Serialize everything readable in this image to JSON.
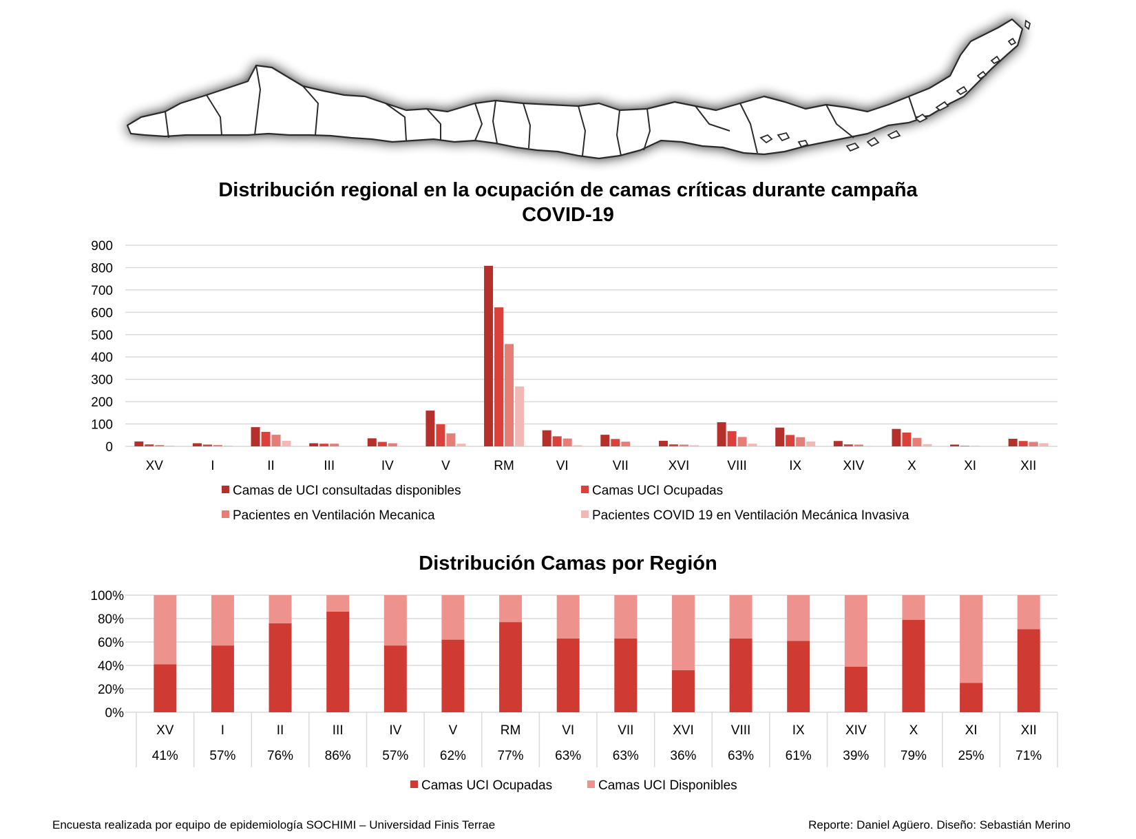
{
  "colors": {
    "uci_disponibles": "#b5302b",
    "uci_ocupadas": "#d9413a",
    "ventilacion": "#e77d77",
    "covid_vmi": "#f2b8b5",
    "stack_ocupadas": "#cf3b33",
    "stack_disponibles": "#ee928d",
    "grid": "#d9d9d9"
  },
  "chart1": {
    "title_line1": "Distribución regional en la ocupación de camas críticas durante campaña",
    "title_line2": "COVID-19"
  },
  "chart2": {
    "title": "Distribución Camas por Región"
  },
  "footer": {
    "left": "Encuesta realizada por equipo de epidemiología SOCHIMI – Universidad Finis Terrae",
    "right": "Reporte: Daniel Agüero. Diseño: Sebastián Merino"
  },
  "chart_data": [
    {
      "type": "bar",
      "title": "Distribución regional en la ocupación de camas críticas durante campaña COVID-19",
      "categories": [
        "XV",
        "I",
        "II",
        "III",
        "IV",
        "V",
        "RM",
        "VI",
        "VII",
        "XVI",
        "VIII",
        "IX",
        "XIV",
        "X",
        "XI",
        "XII"
      ],
      "ylim": [
        0,
        900
      ],
      "yticks": [
        0,
        100,
        200,
        300,
        400,
        500,
        600,
        700,
        800,
        900
      ],
      "grid": true,
      "legend": "bottom",
      "series": [
        {
          "name": "Camas de UCI consultadas disponibles",
          "color_key": "uci_disponibles",
          "values": [
            22,
            14,
            86,
            14,
            36,
            160,
            808,
            72,
            52,
            25,
            108,
            84,
            24,
            78,
            8,
            34
          ]
        },
        {
          "name": "Camas UCI Ocupadas",
          "color_key": "uci_ocupadas",
          "values": [
            9,
            8,
            65,
            12,
            20,
            99,
            622,
            45,
            33,
            9,
            68,
            51,
            9,
            62,
            2,
            24
          ]
        },
        {
          "name": "Pacientes en Ventilación Mecanica",
          "color_key": "ventilacion",
          "values": [
            6,
            6,
            52,
            12,
            14,
            58,
            458,
            35,
            21,
            8,
            42,
            41,
            8,
            38,
            1,
            20
          ]
        },
        {
          "name": "Pacientes COVID 19 en Ventilación Mecánica Invasiva",
          "color_key": "covid_vmi",
          "values": [
            3,
            3,
            25,
            0,
            0,
            12,
            268,
            5,
            0,
            5,
            12,
            22,
            1,
            10,
            0,
            14
          ]
        }
      ]
    },
    {
      "type": "bar",
      "stacked": "percent",
      "title": "Distribución Camas por Región",
      "categories": [
        "XV",
        "I",
        "II",
        "III",
        "IV",
        "V",
        "RM",
        "VI",
        "VII",
        "XVI",
        "VIII",
        "IX",
        "XIV",
        "X",
        "XI",
        "XII"
      ],
      "ylim": [
        0,
        100
      ],
      "yticks": [
        "0%",
        "20%",
        "40%",
        "60%",
        "80%",
        "100%"
      ],
      "grid": true,
      "legend": "bottom",
      "table_row": [
        "41%",
        "57%",
        "76%",
        "86%",
        "57%",
        "62%",
        "77%",
        "63%",
        "63%",
        "36%",
        "63%",
        "61%",
        "39%",
        "79%",
        "25%",
        "71%"
      ],
      "series": [
        {
          "name": "Camas UCI Ocupadas",
          "color_key": "stack_ocupadas",
          "values": [
            41,
            57,
            76,
            86,
            57,
            62,
            77,
            63,
            63,
            36,
            63,
            61,
            39,
            79,
            25,
            71
          ]
        },
        {
          "name": "Camas UCI Disponibles",
          "color_key": "stack_disponibles",
          "values": [
            59,
            43,
            24,
            14,
            43,
            38,
            23,
            37,
            37,
            64,
            37,
            39,
            61,
            21,
            75,
            29
          ]
        }
      ]
    }
  ]
}
